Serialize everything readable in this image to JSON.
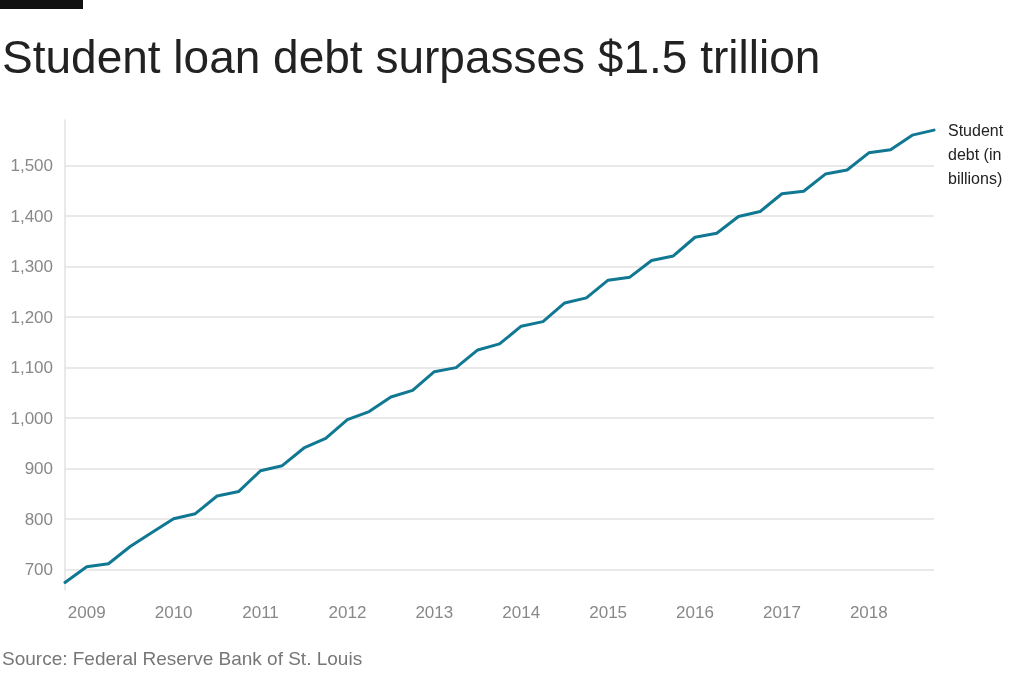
{
  "chart_data": {
    "type": "line",
    "title": "Student loan debt surpasses $1.5 trillion",
    "categories": [
      null,
      "2009",
      null,
      null,
      null,
      "2010",
      null,
      null,
      null,
      "2011",
      null,
      null,
      null,
      "2012",
      null,
      null,
      null,
      "2013",
      null,
      null,
      null,
      "2014",
      null,
      null,
      null,
      "2015",
      null,
      null,
      null,
      "2016",
      null,
      null,
      null,
      "2017",
      null,
      null,
      null,
      "2018",
      null,
      null,
      null
    ],
    "series": [
      {
        "name": "Student debt (in billions)",
        "color": "#117893",
        "values": [
          675,
          706,
          712,
          746,
          774,
          801,
          811,
          846,
          855,
          896,
          906,
          941,
          960,
          997,
          1013,
          1042,
          1055,
          1092,
          1100,
          1135,
          1147,
          1182,
          1191,
          1228,
          1238,
          1273,
          1279,
          1312,
          1321,
          1358,
          1366,
          1399,
          1409,
          1444,
          1449,
          1483,
          1491,
          1525,
          1531,
          1560,
          1570
        ]
      }
    ],
    "ylim": [
      660,
      1590
    ],
    "yticks": [
      700,
      800,
      900,
      {
        "value": 1000,
        "label": "1,000"
      },
      {
        "value": 1100,
        "label": "1,100"
      },
      {
        "value": 1200,
        "label": "1,200"
      },
      {
        "value": 1300,
        "label": "1,300"
      },
      {
        "value": 1400,
        "label": "1,400"
      },
      {
        "value": 1500,
        "label": "1,500"
      }
    ],
    "grid": "y",
    "legend": false,
    "marker": "none",
    "line_style": "solid",
    "annotations": [
      "Source: Federal Reserve Bank of St. Louis"
    ]
  }
}
